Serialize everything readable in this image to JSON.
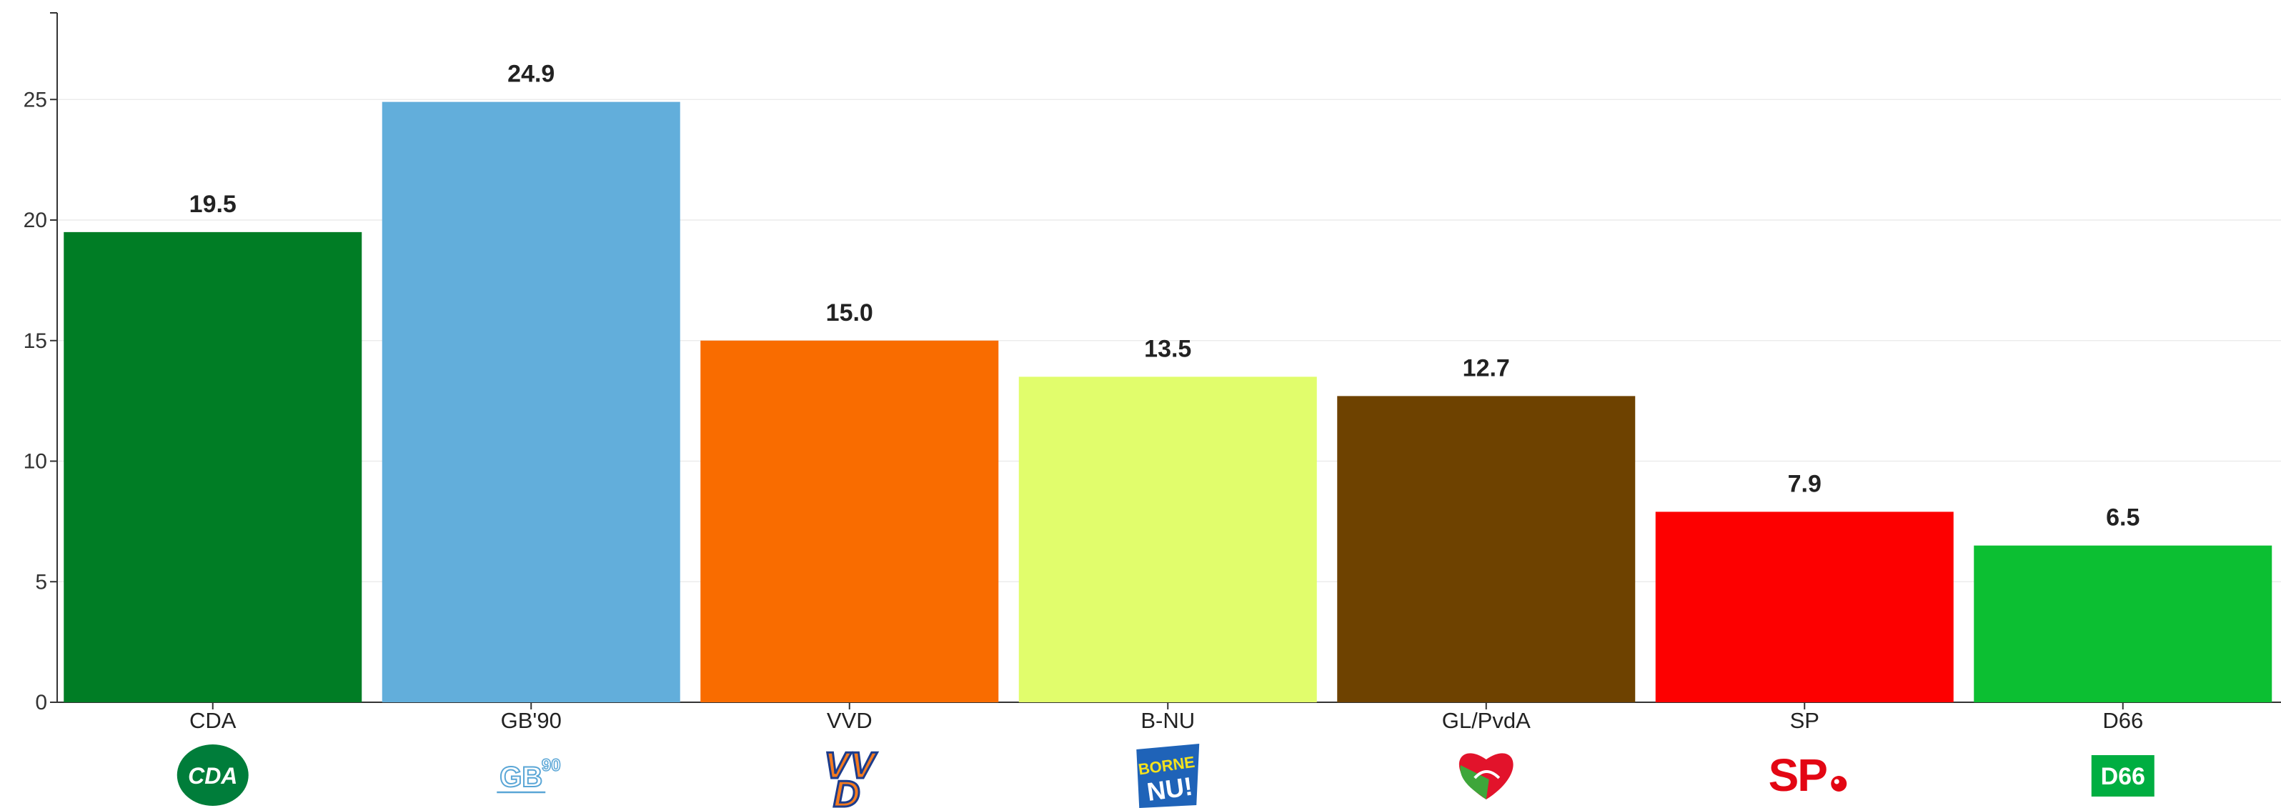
{
  "chart_data": {
    "type": "bar",
    "categories": [
      "CDA",
      "GB'90",
      "VVD",
      "B-NU",
      "GL/PvdA",
      "SP",
      "D66"
    ],
    "values": [
      19.5,
      24.9,
      15.0,
      13.5,
      12.7,
      7.9,
      6.5
    ],
    "value_labels": [
      "19.5",
      "24.9",
      "15.0",
      "13.5",
      "12.7",
      "7.9",
      "6.5"
    ],
    "colors": [
      "#007d25",
      "#62aedb",
      "#f96c00",
      "#e1fd6c",
      "#6e4200",
      "#fd0000",
      "#0cbf32"
    ],
    "ylim": [
      0,
      28
    ],
    "yticks": [
      0,
      5,
      10,
      15,
      20,
      25
    ],
    "grid": true,
    "legend": "none",
    "logos": [
      {
        "icon": "cda-logo-icon",
        "text": "CDA"
      },
      {
        "icon": "gb90-logo-icon",
        "text": "GB",
        "sup": "90"
      },
      {
        "icon": "vvd-logo-icon",
        "text": "VVD"
      },
      {
        "icon": "borne-nu-logo-icon",
        "text": "BORNE",
        "text2": "NU!"
      },
      {
        "icon": "gl-pvda-logo-icon"
      },
      {
        "icon": "sp-logo-icon",
        "text": "SP"
      },
      {
        "icon": "d66-logo-icon",
        "text": "D66"
      }
    ]
  }
}
